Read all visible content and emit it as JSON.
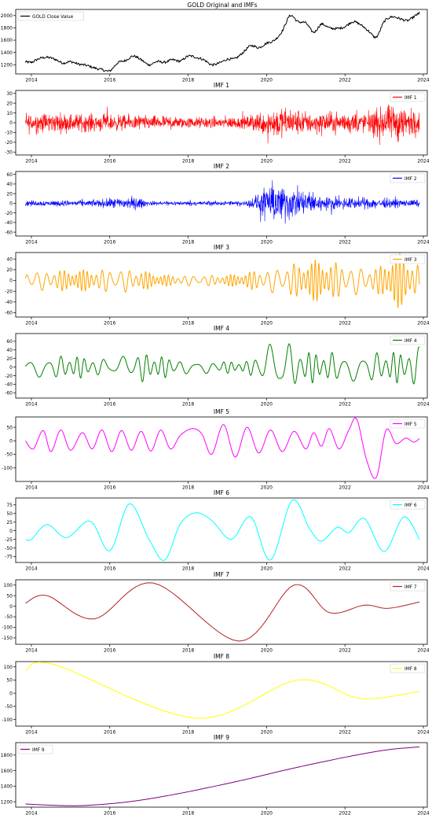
{
  "figure_title": "GOLD Original and IMFs",
  "chart_data": [
    {
      "type": "line",
      "title": "",
      "x_ticks": [
        "2014",
        "2016",
        "2018",
        "2020",
        "2022",
        "2024"
      ],
      "xlim": [
        2013.6,
        2024.1
      ],
      "ylim": [
        1050,
        2100
      ],
      "y_ticks": [
        1200,
        1400,
        1600,
        1800,
        2000
      ],
      "legend": "top-left",
      "series": [
        {
          "name": "GOLD Close Value",
          "color": "#000000",
          "x": [
            2013.85,
            2014.0,
            2014.2,
            2014.4,
            2014.6,
            2014.8,
            2015.0,
            2015.2,
            2015.4,
            2015.6,
            2015.8,
            2016.0,
            2016.2,
            2016.4,
            2016.6,
            2016.8,
            2017.0,
            2017.2,
            2017.4,
            2017.6,
            2017.8,
            2018.0,
            2018.2,
            2018.4,
            2018.6,
            2018.8,
            2019.0,
            2019.2,
            2019.4,
            2019.6,
            2019.8,
            2020.0,
            2020.2,
            2020.4,
            2020.6,
            2020.8,
            2021.0,
            2021.2,
            2021.4,
            2021.6,
            2021.8,
            2022.0,
            2022.2,
            2022.4,
            2022.6,
            2022.8,
            2023.0,
            2023.2,
            2023.4,
            2023.6,
            2023.8,
            2023.9
          ],
          "y": [
            1250,
            1240,
            1300,
            1320,
            1290,
            1230,
            1250,
            1210,
            1190,
            1150,
            1120,
            1100,
            1230,
            1270,
            1340,
            1280,
            1200,
            1250,
            1240,
            1280,
            1260,
            1340,
            1320,
            1280,
            1200,
            1230,
            1290,
            1300,
            1400,
            1510,
            1480,
            1550,
            1600,
            1750,
            2000,
            1900,
            1880,
            1730,
            1860,
            1800,
            1790,
            1820,
            1900,
            1850,
            1750,
            1650,
            1900,
            1980,
            1950,
            1920,
            2000,
            2040
          ]
        }
      ]
    },
    {
      "type": "line",
      "title": "IMF 1",
      "x_ticks": [
        "2014",
        "2016",
        "2018",
        "2020",
        "2022",
        "2024"
      ],
      "xlim": [
        2013.6,
        2024.1
      ],
      "ylim": [
        -33,
        33
      ],
      "y_ticks": [
        -30,
        -20,
        -10,
        0,
        10,
        20,
        30
      ],
      "legend": "top-right",
      "series": [
        {
          "name": "IMF 1",
          "color": "#ff0000",
          "style": "noise",
          "amplitude_envelope": [
            [
              2013.85,
              15
            ],
            [
              2016.0,
              12
            ],
            [
              2018.0,
              8
            ],
            [
              2019.5,
              9
            ],
            [
              2020.2,
              24
            ],
            [
              2021.0,
              16
            ],
            [
              2022.5,
              14
            ],
            [
              2023.3,
              28
            ],
            [
              2023.9,
              16
            ]
          ]
        }
      ]
    },
    {
      "type": "line",
      "title": "IMF 2",
      "x_ticks": [
        "2014",
        "2016",
        "2018",
        "2020",
        "2022",
        "2024"
      ],
      "xlim": [
        2013.6,
        2024.1
      ],
      "ylim": [
        -68,
        66
      ],
      "y_ticks": [
        -60,
        -40,
        -20,
        0,
        20,
        40,
        60
      ],
      "legend": "top-right",
      "series": [
        {
          "name": "IMF 2",
          "color": "#0000ff",
          "style": "noise",
          "amplitude_envelope": [
            [
              2013.85,
              8
            ],
            [
              2015.5,
              9
            ],
            [
              2016.6,
              20
            ],
            [
              2017.0,
              6
            ],
            [
              2019.5,
              7
            ],
            [
              2020.2,
              60
            ],
            [
              2020.5,
              50
            ],
            [
              2021.0,
              38
            ],
            [
              2021.5,
              18
            ],
            [
              2022.5,
              16
            ],
            [
              2023.9,
              9
            ]
          ]
        }
      ]
    },
    {
      "type": "line",
      "title": "IMF 3",
      "x_ticks": [
        "2014",
        "2016",
        "2018",
        "2020",
        "2022",
        "2024"
      ],
      "xlim": [
        2013.6,
        2024.1
      ],
      "ylim": [
        -68,
        52
      ],
      "y_ticks": [
        -60,
        -40,
        -20,
        0,
        20,
        40
      ],
      "legend": "top-right",
      "series": [
        {
          "name": "IMF 3",
          "color": "#ffa500",
          "style": "oscillation",
          "cycles_per_year": 9,
          "amplitude_envelope": [
            [
              2013.85,
              18
            ],
            [
              2016.5,
              22
            ],
            [
              2017.5,
              10
            ],
            [
              2019.0,
              10
            ],
            [
              2020.3,
              25
            ],
            [
              2021.3,
              40
            ],
            [
              2022.0,
              30
            ],
            [
              2022.8,
              22
            ],
            [
              2023.3,
              55
            ],
            [
              2023.9,
              30
            ]
          ]
        }
      ]
    },
    {
      "type": "line",
      "title": "IMF 4",
      "x_ticks": [
        "2014",
        "2016",
        "2018",
        "2020",
        "2022",
        "2024"
      ],
      "xlim": [
        2013.6,
        2024.1
      ],
      "ylim": [
        -72,
        78
      ],
      "y_ticks": [
        -60,
        -40,
        -20,
        0,
        20,
        40,
        60
      ],
      "legend": "top-right",
      "series": [
        {
          "name": "IMF 4",
          "color": "#008000",
          "style": "oscillation",
          "cycles_per_year": 4.5,
          "amplitude_envelope": [
            [
              2013.85,
              22
            ],
            [
              2015.0,
              28
            ],
            [
              2016.0,
              18
            ],
            [
              2016.8,
              35
            ],
            [
              2018.0,
              15
            ],
            [
              2019.5,
              14
            ],
            [
              2020.3,
              68
            ],
            [
              2021.0,
              38
            ],
            [
              2022.0,
              32
            ],
            [
              2023.5,
              38
            ],
            [
              2023.9,
              50
            ]
          ]
        }
      ]
    },
    {
      "type": "line",
      "title": "IMF 5",
      "x_ticks": [
        "2014",
        "2016",
        "2018",
        "2020",
        "2022",
        "2024"
      ],
      "xlim": [
        2013.6,
        2024.1
      ],
      "ylim": [
        -150,
        88
      ],
      "y_ticks": [
        -100,
        -50,
        0,
        50
      ],
      "legend": "top-right",
      "series": [
        {
          "name": "IMF 5",
          "color": "#ff00ff",
          "x": [
            2013.85,
            2014.05,
            2014.3,
            2014.5,
            2014.75,
            2015.0,
            2015.3,
            2015.55,
            2015.8,
            2016.05,
            2016.3,
            2016.55,
            2016.8,
            2017.05,
            2017.3,
            2017.55,
            2017.8,
            2018.1,
            2018.35,
            2018.6,
            2018.9,
            2019.2,
            2019.5,
            2019.8,
            2020.1,
            2020.4,
            2020.7,
            2021.0,
            2021.2,
            2021.4,
            2021.6,
            2021.85,
            2022.1,
            2022.3,
            2022.55,
            2022.8,
            2023.05,
            2023.3,
            2023.55,
            2023.75,
            2023.9
          ],
          "y": [
            0,
            -30,
            38,
            -40,
            40,
            -35,
            30,
            -30,
            40,
            -40,
            38,
            -35,
            35,
            -38,
            40,
            -30,
            20,
            45,
            25,
            -50,
            60,
            -60,
            50,
            -45,
            40,
            -40,
            35,
            -30,
            30,
            -20,
            45,
            -30,
            40,
            80,
            -70,
            -135,
            40,
            -10,
            10,
            -5,
            8
          ]
        }
      ]
    },
    {
      "type": "line",
      "title": "IMF 6",
      "x_ticks": [
        "2014",
        "2016",
        "2018",
        "2020",
        "2022",
        "2024"
      ],
      "xlim": [
        2013.6,
        2024.1
      ],
      "ylim": [
        -92,
        95
      ],
      "y_ticks": [
        -75,
        -50,
        -25,
        0,
        25,
        50,
        75
      ],
      "legend": "top-right",
      "series": [
        {
          "name": "IMF 6",
          "color": "#00ffff",
          "x": [
            2013.85,
            2014.0,
            2014.4,
            2014.9,
            2015.5,
            2016.0,
            2016.5,
            2017.0,
            2017.4,
            2017.8,
            2018.2,
            2018.6,
            2019.1,
            2019.6,
            2020.1,
            2020.65,
            2021.1,
            2021.4,
            2021.8,
            2022.1,
            2022.5,
            2023.0,
            2023.5,
            2023.9
          ],
          "y": [
            -25,
            -25,
            18,
            -20,
            28,
            -58,
            78,
            -25,
            -85,
            20,
            52,
            30,
            -25,
            40,
            -85,
            88,
            5,
            -30,
            10,
            -5,
            35,
            -60,
            40,
            -25
          ]
        }
      ]
    },
    {
      "type": "line",
      "title": "IMF 7",
      "x_ticks": [
        "2014",
        "2016",
        "2018",
        "2020",
        "2022",
        "2024"
      ],
      "xlim": [
        2013.6,
        2024.1
      ],
      "ylim": [
        -180,
        125
      ],
      "y_ticks": [
        -150,
        -100,
        -50,
        0,
        50,
        100
      ],
      "legend": "top-right",
      "series": [
        {
          "name": "IMF 7",
          "color": "#b22222",
          "x": [
            2013.85,
            2014.4,
            2015.6,
            2017.1,
            2019.3,
            2020.7,
            2021.6,
            2022.5,
            2023.1,
            2023.9
          ],
          "y": [
            15,
            50,
            -60,
            110,
            -165,
            100,
            -30,
            5,
            -10,
            20
          ]
        }
      ]
    },
    {
      "type": "line",
      "title": "IMF 8",
      "x_ticks": [
        "2014",
        "2016",
        "2018",
        "2020",
        "2022",
        "2024"
      ],
      "xlim": [
        2013.6,
        2024.1
      ],
      "ylim": [
        -125,
        120
      ],
      "y_ticks": [
        -100,
        -50,
        0,
        50,
        100
      ],
      "legend": "top-right",
      "series": [
        {
          "name": "IMF 8",
          "color": "#ffff00",
          "x": [
            2013.85,
            2014.6,
            2018.2,
            2020.8,
            2022.4,
            2023.9
          ],
          "y": [
            85,
            108,
            -95,
            50,
            -20,
            7
          ]
        }
      ]
    },
    {
      "type": "line",
      "title": "IMF 9",
      "x_ticks": [
        "2014",
        "2016",
        "2018",
        "2020",
        "2022",
        "2024"
      ],
      "xlim": [
        2013.6,
        2024.1
      ],
      "ylim": [
        1130,
        1960
      ],
      "y_ticks": [
        1200,
        1400,
        1600,
        1800
      ],
      "legend": "top-left",
      "series": [
        {
          "name": "IMF 9",
          "color": "#800080",
          "x": [
            2013.85,
            2014.8,
            2015.5,
            2016.5,
            2017.5,
            2018.5,
            2019.5,
            2020.5,
            2021.5,
            2022.5,
            2023.2,
            2023.9
          ],
          "y": [
            1170,
            1150,
            1155,
            1200,
            1280,
            1380,
            1490,
            1610,
            1720,
            1820,
            1875,
            1905
          ]
        }
      ]
    }
  ]
}
